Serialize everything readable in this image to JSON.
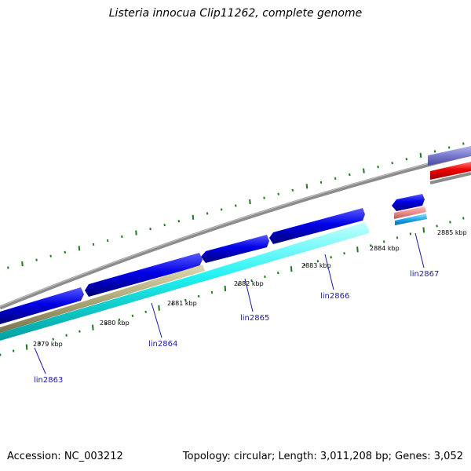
{
  "header": {
    "title": "Listeria innocua Clip11262, complete genome"
  },
  "footer": {
    "accession": "Accession: NC_003212",
    "summary": "Topology: circular; Length: 3,011,208 bp; Genes: 3,052"
  },
  "ruler": {
    "labels": [
      "2879 kbp",
      "2880 kbp",
      "2881 kbp",
      "2882 kbp",
      "2883 kbp",
      "2884 kbp",
      "2885 kbp"
    ]
  },
  "genes": [
    {
      "name": "lin2863"
    },
    {
      "name": "lin2864"
    },
    {
      "name": "lin2865"
    },
    {
      "name": "lin2866"
    },
    {
      "name": "lin2867"
    }
  ],
  "colors": {
    "backbone": "#8c8c8c",
    "cds_forward": "#0000dd",
    "cds_reverse": "#0000dd",
    "gene_track": "#00eeee",
    "rna_track": "#b0a878",
    "tick": "#1c7a1c",
    "label": "#1a1aa8",
    "red_feature": "#ee0000",
    "purple_feature": "#7777cc",
    "pink_feature": "#ee8888"
  }
}
